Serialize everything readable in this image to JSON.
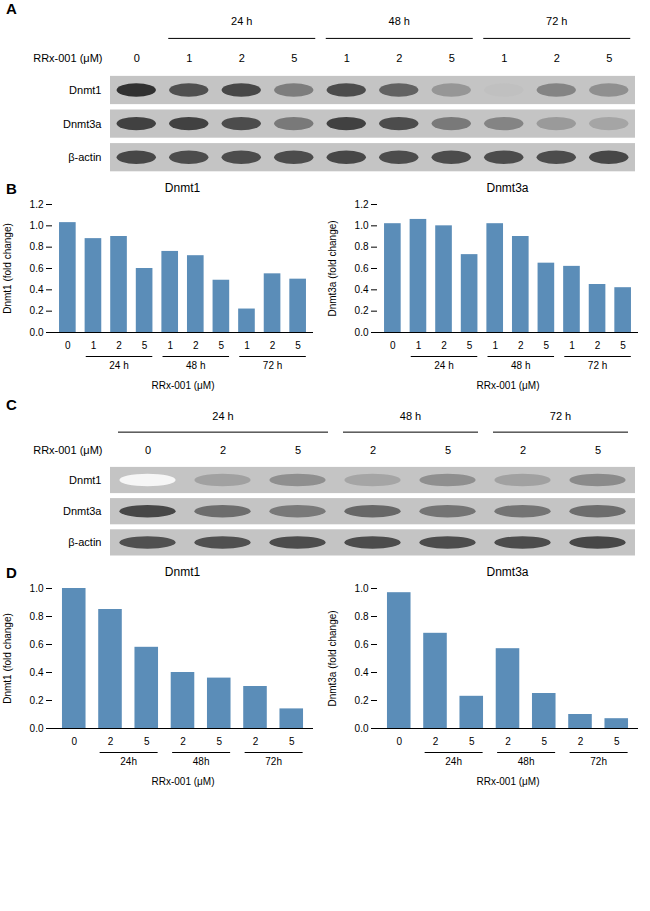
{
  "chart_data": [
    {
      "type": "blot",
      "panel": "A",
      "xlabel": "RRx-001 (μM)",
      "categories": [
        "0",
        "1",
        "2",
        "5",
        "1",
        "2",
        "5",
        "1",
        "2",
        "5"
      ],
      "groups": [
        {
          "label": "24 h",
          "start": 1,
          "end": 3
        },
        {
          "label": "48 h",
          "start": 4,
          "end": 6
        },
        {
          "label": "72 h",
          "start": 7,
          "end": 9
        }
      ],
      "rows": [
        {
          "name": "Dnmt1",
          "values": [
            0.92,
            0.78,
            0.82,
            0.58,
            0.8,
            0.7,
            0.47,
            0.28,
            0.55,
            0.5
          ]
        },
        {
          "name": "Dnmt3a",
          "values": [
            0.85,
            0.85,
            0.8,
            0.6,
            0.85,
            0.8,
            0.6,
            0.55,
            0.45,
            0.4
          ]
        },
        {
          "name": "β-actin",
          "values": [
            0.82,
            0.8,
            0.8,
            0.8,
            0.82,
            0.8,
            0.8,
            0.8,
            0.8,
            0.82
          ]
        }
      ]
    },
    {
      "type": "bar",
      "panel": "B",
      "title": "Dnmt1",
      "categories": [
        "0",
        "1",
        "2",
        "5",
        "1",
        "2",
        "5",
        "1",
        "2",
        "5"
      ],
      "values": [
        1.03,
        0.88,
        0.9,
        0.6,
        0.76,
        0.72,
        0.49,
        0.22,
        0.55,
        0.5
      ],
      "xlabel": "RRx-001 (μM)",
      "ylabel": "Dnmt1 (fold change)",
      "groups": [
        {
          "label": "24 h",
          "start": 1,
          "end": 3
        },
        {
          "label": "48 h",
          "start": 4,
          "end": 6
        },
        {
          "label": "72 h",
          "start": 7,
          "end": 9
        }
      ],
      "color": "#5b8db8",
      "ylim": [
        0,
        1.2
      ],
      "yticks": [
        {
          "value": 0,
          "label": "0.0"
        },
        0.2,
        0.4,
        0.6,
        0.8,
        {
          "value": 1,
          "label": "1.0"
        },
        1.2
      ]
    },
    {
      "type": "bar",
      "title": "Dnmt3a",
      "categories": [
        "0",
        "1",
        "2",
        "5",
        "1",
        "2",
        "5",
        "1",
        "2",
        "5"
      ],
      "values": [
        1.02,
        1.06,
        1.0,
        0.73,
        1.02,
        0.9,
        0.65,
        0.62,
        0.45,
        0.42
      ],
      "xlabel": "RRx-001 (μM)",
      "ylabel": "Dnmt3a (fold change)",
      "groups": [
        {
          "label": "24 h",
          "start": 1,
          "end": 3
        },
        {
          "label": "48 h",
          "start": 4,
          "end": 6
        },
        {
          "label": "72 h",
          "start": 7,
          "end": 9
        }
      ],
      "color": "#5b8db8",
      "ylim": [
        0,
        1.2
      ],
      "yticks": [
        {
          "value": 0,
          "label": "0.0"
        },
        0.2,
        0.4,
        0.6,
        0.8,
        {
          "value": 1,
          "label": "1.0"
        },
        1.2
      ]
    },
    {
      "type": "blot",
      "panel": "C",
      "xlabel": "RRx-001 (μM)",
      "categories": [
        "0",
        "2",
        "5",
        "2",
        "5",
        "2",
        "5"
      ],
      "groups": [
        {
          "label": "24 h",
          "start": 0,
          "end": 2
        },
        {
          "label": "48 h",
          "start": 3,
          "end": 4
        },
        {
          "label": "72 h",
          "start": 5,
          "end": 6
        }
      ],
      "rows": [
        {
          "name": "Dnmt1",
          "values": [
            0.04,
            0.42,
            0.5,
            0.4,
            0.5,
            0.42,
            0.52
          ]
        },
        {
          "name": "Dnmt3a",
          "values": [
            0.82,
            0.65,
            0.6,
            0.68,
            0.62,
            0.62,
            0.65
          ]
        },
        {
          "name": "β-actin",
          "values": [
            0.78,
            0.78,
            0.8,
            0.8,
            0.8,
            0.8,
            0.82
          ]
        }
      ]
    },
    {
      "type": "bar",
      "panel": "D",
      "title": "Dnmt1",
      "categories": [
        "0",
        "2",
        "5",
        "2",
        "5",
        "2",
        "5"
      ],
      "values": [
        1.0,
        0.85,
        0.58,
        0.4,
        0.36,
        0.3,
        0.14
      ],
      "xlabel": "RRx-001 (μM)",
      "ylabel": "Dnmt1 (fold change)",
      "groups": [
        {
          "label": "24h",
          "start": 1,
          "end": 2
        },
        {
          "label": "48h",
          "start": 3,
          "end": 4
        },
        {
          "label": "72h",
          "start": 5,
          "end": 6
        }
      ],
      "color": "#5b8db8",
      "ylim": [
        0,
        1.0
      ],
      "yticks": [
        {
          "value": 0,
          "label": "0.0"
        },
        0.2,
        0.4,
        0.6,
        0.8,
        {
          "value": 1,
          "label": "1.0"
        }
      ]
    },
    {
      "type": "bar",
      "title": "Dnmt3a",
      "categories": [
        "0",
        "2",
        "5",
        "2",
        "5",
        "2",
        "5"
      ],
      "values": [
        0.97,
        0.68,
        0.23,
        0.57,
        0.25,
        0.1,
        0.07
      ],
      "xlabel": "RRx-001 (μM)",
      "ylabel": "Dnmt3a (fold change)",
      "groups": [
        {
          "label": "24h",
          "start": 1,
          "end": 2
        },
        {
          "label": "48h",
          "start": 3,
          "end": 4
        },
        {
          "label": "72h",
          "start": 5,
          "end": 6
        }
      ],
      "color": "#5b8db8",
      "ylim": [
        0,
        1.0
      ],
      "yticks": [
        {
          "value": 0,
          "label": "0.0"
        },
        0.2,
        0.4,
        0.6,
        0.8,
        {
          "value": 1,
          "label": "1.0"
        }
      ]
    }
  ]
}
